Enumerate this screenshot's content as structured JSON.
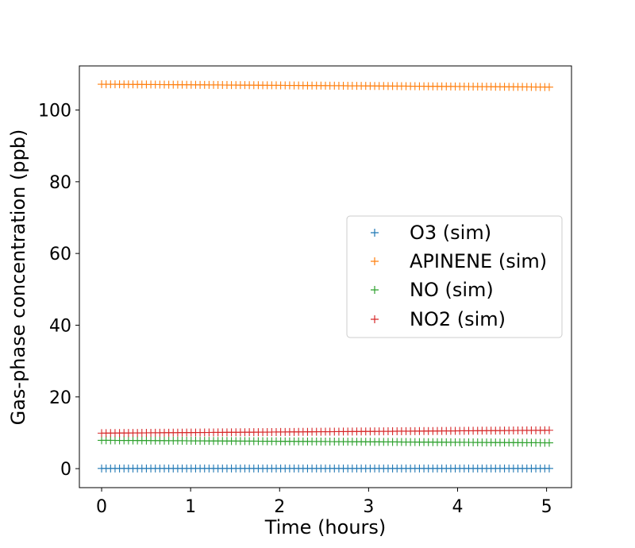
{
  "chart_data": {
    "type": "scatter",
    "xlabel": "Time (hours)",
    "ylabel": "Gas-phase concentration (ppb)",
    "xlim": [
      -0.25,
      5.28
    ],
    "ylim": [
      -5.3,
      112.3
    ],
    "x_ticks": [
      0,
      1,
      2,
      3,
      4,
      5
    ],
    "y_ticks": [
      0,
      20,
      40,
      60,
      80,
      100
    ],
    "grid": false,
    "legend_position": "center-right",
    "x_range": [
      0,
      5.03
    ],
    "point_count": 101,
    "series": [
      {
        "name": "O3 (sim)",
        "color": "#1f77b4",
        "marker": "plus",
        "start": 0.05,
        "end": 0.05
      },
      {
        "name": "APINENE (sim)",
        "color": "#ff7f0e",
        "marker": "plus",
        "start": 107.2,
        "end": 106.4
      },
      {
        "name": "NO (sim)",
        "color": "#2ca02c",
        "marker": "plus",
        "start": 7.9,
        "end": 7.2
      },
      {
        "name": "NO2 (sim)",
        "color": "#d62728",
        "marker": "plus",
        "start": 9.9,
        "end": 10.7
      }
    ]
  }
}
